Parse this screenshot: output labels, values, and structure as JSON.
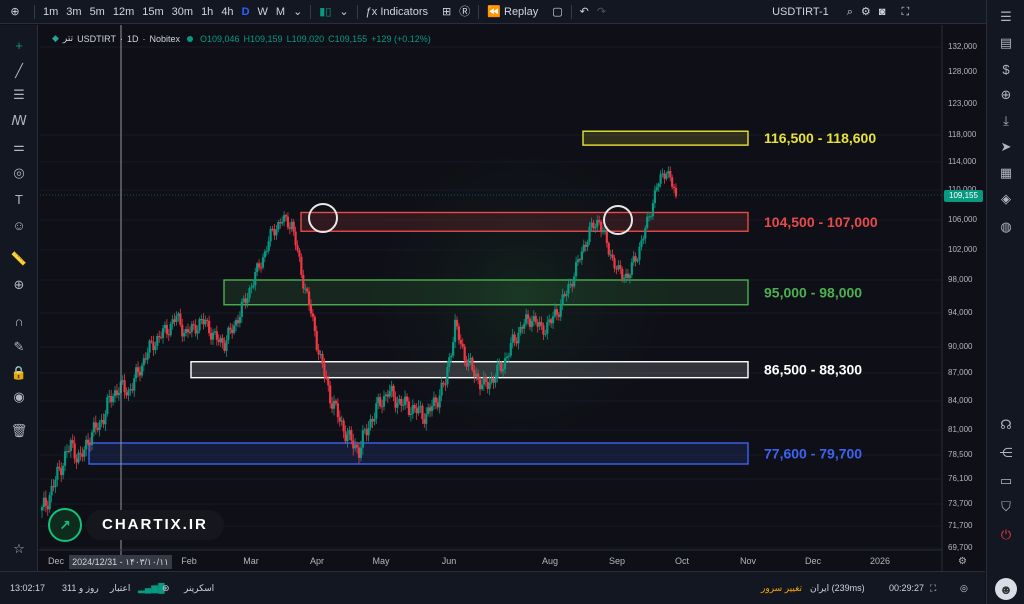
{
  "toolbar": {
    "intervals": [
      "1m",
      "3m",
      "5m",
      "12m",
      "15m",
      "30m",
      "1h",
      "4h",
      "D",
      "W",
      "M"
    ],
    "active_interval": "D",
    "indicators_label": "Indicators",
    "replay_label": "Replay",
    "symbol": "USDTIRT-1"
  },
  "legend": {
    "name": "تتر",
    "symbol": "USDTIRT",
    "interval": "1D",
    "exchange": "Nobitex",
    "open": "O109,046",
    "high": "H109,159",
    "low": "L109,020",
    "close": "C109,155",
    "change": "+129 (+0.12%)"
  },
  "chart_data": {
    "type": "candlestick",
    "symbol": "USDTIRT",
    "exchange": "Nobitex",
    "timeframe": "1D",
    "last_price": "109,155",
    "price_axis_ticks": [
      "132,000",
      "128,000",
      "123,000",
      "118,000",
      "114,000",
      "110,000",
      "106,000",
      "102,000",
      "98,000",
      "94,000",
      "90,000",
      "87,000",
      "84,000",
      "81,000",
      "78,500",
      "76,100",
      "73,700",
      "71,700",
      "69,700"
    ],
    "time_axis_ticks": [
      "Dec",
      "Feb",
      "Mar",
      "Apr",
      "May",
      "Jun",
      "Aug",
      "Sep",
      "Oct",
      "Nov",
      "Dec",
      "2026"
    ],
    "zones": [
      {
        "label": "116,500 - 118,600",
        "low": 116500,
        "high": 118600,
        "color": "#e8e23a"
      },
      {
        "label": "104,500 - 107,000",
        "low": 104500,
        "high": 107000,
        "color": "#e84a4a"
      },
      {
        "label": "95,000 - 98,000",
        "low": 95000,
        "high": 98000,
        "color": "#4caf50"
      },
      {
        "label": "86,500 - 88,300",
        "low": 86500,
        "high": 88300,
        "color": "#ffffff"
      },
      {
        "label": "77,600 - 79,700",
        "low": 77600,
        "high": 79700,
        "color": "#3d63f2"
      }
    ],
    "series": [
      {
        "close": [
          73000,
          75000,
          77500,
          79500,
          78000,
          80500,
          81500,
          84000,
          85500,
          85000,
          87000,
          89500,
          91000,
          92000,
          93500,
          91500,
          92500,
          93000,
          91000,
          90500,
          92500,
          95000,
          98000,
          101000,
          104500,
          106000,
          105500,
          99000,
          94000,
          88500,
          84500,
          82000,
          80000,
          79000,
          81500,
          83500,
          85000,
          84000,
          83500,
          83000,
          82500,
          84000,
          86000,
          92500,
          89000,
          87000,
          85500,
          86500,
          88000,
          90500,
          92500,
          93500,
          92000,
          93000,
          95000,
          97500,
          101000,
          104500,
          106000,
          102000,
          99000,
          98500,
          101500,
          105500,
          110500,
          113000,
          109155
        ]
      }
    ],
    "highlight_circles": [
      "Apr peak",
      "Sep peak"
    ],
    "cursor_date": "2024/12/31 - ۱۴۰۳/۱۰/۱۱"
  },
  "watermark": {
    "text": "CHARTIX.IR"
  },
  "bottombar": {
    "clock": "13:02:17",
    "credit": "311 روز و",
    "credit_label": "اعتبار",
    "screener_label": "اسکرینر",
    "server_change": "تغییر سرور",
    "server": "ایران (239ms)",
    "timer": "00:29:27"
  },
  "colors": {
    "up": "#089981",
    "down": "#f23645",
    "accent": "#2962ff"
  }
}
